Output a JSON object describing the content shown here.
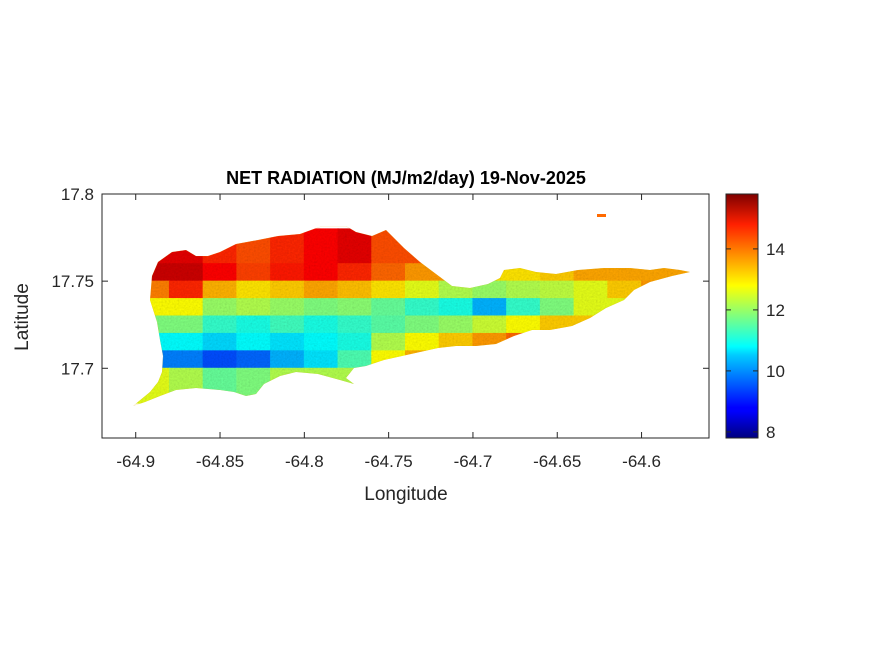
{
  "chart_data": {
    "type": "heatmap",
    "title": "NET RADIATION (MJ/m2/day) 19-Nov-2025",
    "xlabel": "Longitude",
    "ylabel": "Latitude",
    "xlim": [
      -64.92,
      -64.56
    ],
    "ylim": [
      17.66,
      17.8
    ],
    "xticks": [
      -64.9,
      -64.85,
      -64.8,
      -64.75,
      -64.7,
      -64.65,
      -64.6
    ],
    "xtick_labels": [
      "-64.9",
      "-64.85",
      "-64.8",
      "-64.75",
      "-64.7",
      "-64.65",
      "-64.6"
    ],
    "yticks": [
      17.7,
      17.75,
      17.8
    ],
    "ytick_labels": [
      "17.7",
      "17.75",
      "17.8"
    ],
    "grid": false,
    "colormap": "jet",
    "colorbar": {
      "location": "right",
      "range": [
        7.8,
        15.8
      ],
      "ticks": [
        8,
        10,
        12,
        14
      ],
      "tick_labels": [
        "8",
        "10",
        "12",
        "14"
      ]
    },
    "summary_grid": {
      "lon_centers": [
        -64.89,
        -64.87,
        -64.85,
        -64.83,
        -64.81,
        -64.79,
        -64.77,
        -64.75,
        -64.73,
        -64.71,
        -64.69,
        -64.67,
        -64.65,
        -64.63,
        -64.61,
        -64.59,
        -64.57
      ],
      "lat_rows": [
        {
          "lat": 17.765,
          "values": [
            null,
            15.0,
            14.5,
            14.2,
            14.5,
            14.8,
            15.0,
            14.2,
            null,
            null,
            null,
            null,
            null,
            null,
            null,
            null,
            null
          ]
        },
        {
          "lat": 17.755,
          "values": [
            null,
            15.2,
            14.8,
            14.3,
            14.6,
            14.8,
            14.5,
            14.0,
            13.6,
            null,
            null,
            13.0,
            13.2,
            13.5,
            null,
            null,
            null
          ]
        },
        {
          "lat": 17.745,
          "values": [
            13.8,
            14.5,
            13.4,
            13.0,
            13.2,
            13.5,
            13.3,
            13.0,
            12.6,
            12.2,
            12.0,
            12.2,
            12.3,
            12.6,
            13.2,
            13.6,
            13.8
          ]
        },
        {
          "lat": 17.735,
          "values": [
            null,
            12.8,
            12.0,
            12.2,
            12.0,
            11.8,
            11.9,
            11.6,
            11.2,
            11.0,
            10.2,
            11.2,
            11.8,
            12.6,
            null,
            null,
            null
          ]
        },
        {
          "lat": 17.725,
          "values": [
            null,
            11.8,
            11.2,
            11.0,
            11.3,
            11.0,
            11.2,
            11.5,
            11.8,
            12.0,
            12.4,
            12.8,
            13.2,
            null,
            null,
            null,
            null
          ]
        },
        {
          "lat": 17.715,
          "values": [
            null,
            10.8,
            10.5,
            10.8,
            10.6,
            10.8,
            11.0,
            12.2,
            12.8,
            13.2,
            13.6,
            14.0,
            null,
            null,
            null,
            null,
            null
          ]
        },
        {
          "lat": 17.705,
          "values": [
            null,
            9.8,
            9.4,
            9.6,
            10.2,
            10.6,
            11.4,
            12.8,
            13.4,
            null,
            null,
            null,
            null,
            null,
            null,
            null,
            null
          ]
        },
        {
          "lat": 17.695,
          "values": [
            12.6,
            12.2,
            11.6,
            11.8,
            12.2,
            null,
            null,
            null,
            null,
            null,
            null,
            null,
            null,
            null,
            null,
            null,
            null
          ]
        }
      ]
    }
  }
}
